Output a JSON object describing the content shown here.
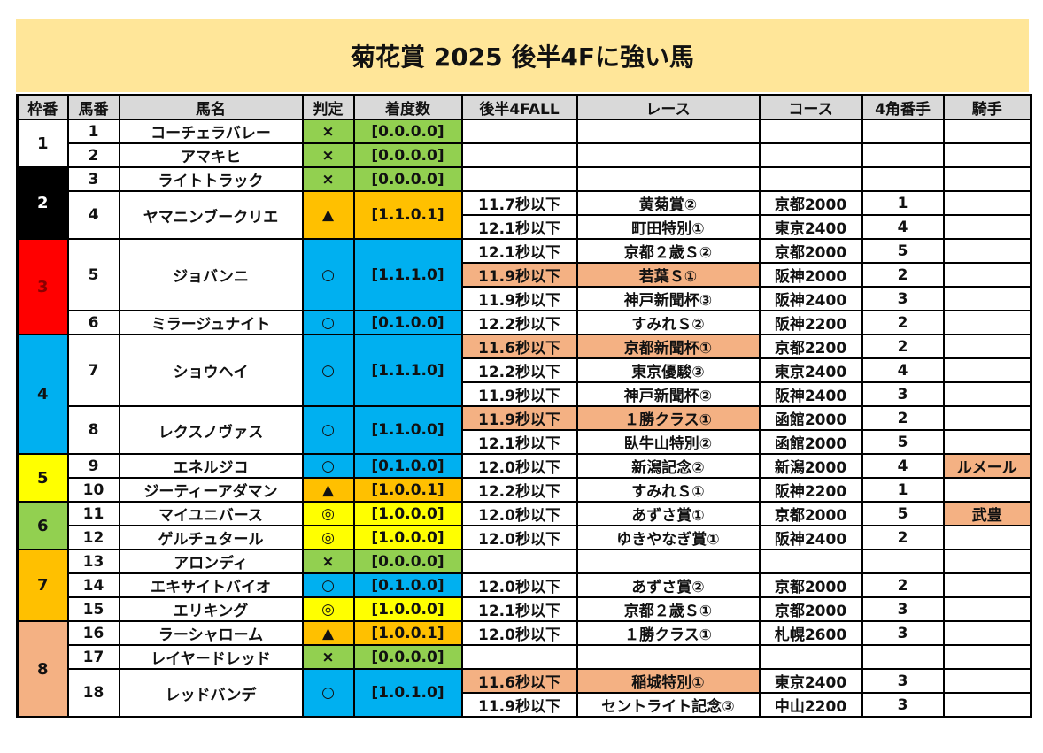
{
  "title": "菊花賞 2025 後半4Fに強い馬",
  "headers": [
    "枠番",
    "馬番",
    "馬名",
    "判定",
    "着度数",
    "後半4FALL",
    "レース",
    "コース",
    "4角番手",
    "騎手"
  ],
  "colors": {
    "highlight": "#f4b183",
    "judge": {
      "×": "#92d050",
      "▲": "#ffc000",
      "○": "#00b0f0",
      "◎": "#ffff00"
    },
    "frames": {
      "1": [
        "#ffffff",
        "#111111"
      ],
      "2": [
        "#000000",
        "#ffffff"
      ],
      "3": [
        "#ff0000",
        "#8b0000"
      ],
      "4": [
        "#00b0f0",
        "#111111"
      ],
      "5": [
        "#ffff00",
        "#111111"
      ],
      "6": [
        "#92d050",
        "#111111"
      ],
      "7": [
        "#ffc000",
        "#111111"
      ],
      "8": [
        "#f4b183",
        "#111111"
      ]
    }
  },
  "frames": [
    {
      "frame": "1",
      "horses": [
        {
          "no": "1",
          "name": "コーチェラバレー",
          "judge": "×",
          "record": "[0.0.0.0]",
          "races": []
        },
        {
          "no": "2",
          "name": "アマキヒ",
          "judge": "×",
          "record": "[0.0.0.0]",
          "races": []
        }
      ]
    },
    {
      "frame": "2",
      "horses": [
        {
          "no": "3",
          "name": "ライトトラック",
          "judge": "×",
          "record": "[0.0.0.0]",
          "races": []
        },
        {
          "no": "4",
          "name": "ヤマニンブークリエ",
          "judge": "▲",
          "record": "[1.1.0.1]",
          "races": [
            {
              "time": "11.7秒以下",
              "race": "黄菊賞②",
              "course": "京都2000",
              "corner": "1",
              "jockey": "",
              "highlight": false
            },
            {
              "time": "12.1秒以下",
              "race": "町田特別①",
              "course": "東京2400",
              "corner": "4",
              "jockey": "",
              "highlight": false
            }
          ]
        }
      ]
    },
    {
      "frame": "3",
      "horses": [
        {
          "no": "5",
          "name": "ジョバンニ",
          "judge": "○",
          "record": "[1.1.1.0]",
          "races": [
            {
              "time": "12.1秒以下",
              "race": "京都２歳Ｓ②",
              "course": "京都2000",
              "corner": "5",
              "jockey": "",
              "highlight": false
            },
            {
              "time": "11.9秒以下",
              "race": "若葉Ｓ①",
              "course": "阪神2000",
              "corner": "2",
              "jockey": "",
              "highlight": true
            },
            {
              "time": "11.9秒以下",
              "race": "神戸新聞杯③",
              "course": "阪神2400",
              "corner": "3",
              "jockey": "",
              "highlight": false
            }
          ]
        },
        {
          "no": "6",
          "name": "ミラージュナイト",
          "judge": "○",
          "record": "[0.1.0.0]",
          "races": [
            {
              "time": "12.2秒以下",
              "race": "すみれＳ②",
              "course": "阪神2200",
              "corner": "2",
              "jockey": "",
              "highlight": false
            }
          ]
        }
      ]
    },
    {
      "frame": "4",
      "horses": [
        {
          "no": "7",
          "name": "ショウヘイ",
          "judge": "○",
          "record": "[1.1.1.0]",
          "races": [
            {
              "time": "11.6秒以下",
              "race": "京都新聞杯①",
              "course": "京都2200",
              "corner": "2",
              "jockey": "",
              "highlight": true
            },
            {
              "time": "12.2秒以下",
              "race": "東京優駿③",
              "course": "東京2400",
              "corner": "4",
              "jockey": "",
              "highlight": false
            },
            {
              "time": "11.9秒以下",
              "race": "神戸新聞杯②",
              "course": "阪神2400",
              "corner": "3",
              "jockey": "",
              "highlight": false
            }
          ]
        },
        {
          "no": "8",
          "name": "レクスノヴァス",
          "judge": "○",
          "record": "[1.1.0.0]",
          "races": [
            {
              "time": "11.9秒以下",
              "race": "１勝クラス①",
              "course": "函館2000",
              "corner": "2",
              "jockey": "",
              "highlight": true
            },
            {
              "time": "12.1秒以下",
              "race": "臥牛山特別②",
              "course": "函館2000",
              "corner": "5",
              "jockey": "",
              "highlight": false
            }
          ]
        }
      ]
    },
    {
      "frame": "5",
      "horses": [
        {
          "no": "9",
          "name": "エネルジコ",
          "judge": "○",
          "record": "[0.1.0.0]",
          "races": [
            {
              "time": "12.0秒以下",
              "race": "新潟記念②",
              "course": "新潟2000",
              "corner": "4",
              "jockey": "ルメール",
              "highlight": false
            }
          ]
        },
        {
          "no": "10",
          "name": "ジーティーアダマン",
          "judge": "▲",
          "record": "[1.0.0.1]",
          "races": [
            {
              "time": "12.2秒以下",
              "race": "すみれＳ①",
              "course": "阪神2200",
              "corner": "1",
              "jockey": "",
              "highlight": false
            }
          ]
        }
      ]
    },
    {
      "frame": "6",
      "horses": [
        {
          "no": "11",
          "name": "マイユニバース",
          "judge": "◎",
          "record": "[1.0.0.0]",
          "races": [
            {
              "time": "12.0秒以下",
              "race": "あずさ賞①",
              "course": "京都2000",
              "corner": "5",
              "jockey": "武豊",
              "highlight": false
            }
          ]
        },
        {
          "no": "12",
          "name": "ゲルチュタール",
          "judge": "◎",
          "record": "[1.0.0.0]",
          "races": [
            {
              "time": "12.0秒以下",
              "race": "ゆきやなぎ賞①",
              "course": "阪神2400",
              "corner": "2",
              "jockey": "",
              "highlight": false
            }
          ]
        }
      ]
    },
    {
      "frame": "7",
      "horses": [
        {
          "no": "13",
          "name": "アロンディ",
          "judge": "×",
          "record": "[0.0.0.0]",
          "races": []
        },
        {
          "no": "14",
          "name": "エキサイトバイオ",
          "judge": "○",
          "record": "[0.1.0.0]",
          "races": [
            {
              "time": "12.0秒以下",
              "race": "あずさ賞②",
              "course": "京都2000",
              "corner": "2",
              "jockey": "",
              "highlight": false
            }
          ]
        },
        {
          "no": "15",
          "name": "エリキング",
          "judge": "◎",
          "record": "[1.0.0.0]",
          "races": [
            {
              "time": "12.1秒以下",
              "race": "京都２歳Ｓ①",
              "course": "京都2000",
              "corner": "3",
              "jockey": "",
              "highlight": false
            }
          ]
        }
      ]
    },
    {
      "frame": "8",
      "horses": [
        {
          "no": "16",
          "name": "ラーシャローム",
          "judge": "▲",
          "record": "[1.0.0.1]",
          "races": [
            {
              "time": "12.0秒以下",
              "race": "１勝クラス①",
              "course": "札幌2600",
              "corner": "3",
              "jockey": "",
              "highlight": false
            }
          ]
        },
        {
          "no": "17",
          "name": "レイヤードレッド",
          "judge": "×",
          "record": "[0.0.0.0]",
          "races": []
        },
        {
          "no": "18",
          "name": "レッドバンデ",
          "judge": "○",
          "record": "[1.0.1.0]",
          "races": [
            {
              "time": "11.6秒以下",
              "race": "稲城特別①",
              "course": "東京2400",
              "corner": "3",
              "jockey": "",
              "highlight": true
            },
            {
              "time": "11.9秒以下",
              "race": "セントライト記念③",
              "course": "中山2200",
              "corner": "3",
              "jockey": "",
              "highlight": false
            }
          ]
        }
      ]
    }
  ]
}
